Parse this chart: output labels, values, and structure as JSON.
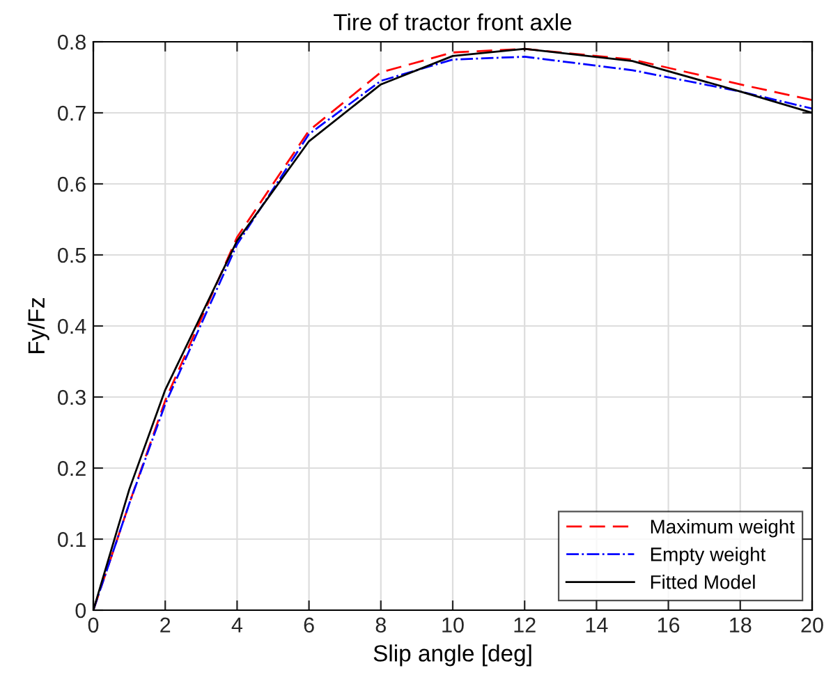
{
  "chart_data": {
    "type": "line",
    "title": "Tire of tractor front axle",
    "xlabel": "Slip angle [deg]",
    "ylabel": "Fy/Fz",
    "x": [
      0,
      1,
      2,
      4,
      6,
      8,
      10,
      12,
      15,
      18,
      20
    ],
    "series": [
      {
        "name": "Maximum weight",
        "color": "#ff0000",
        "line_style": "dashed",
        "values": [
          0,
          0.15,
          0.295,
          0.525,
          0.675,
          0.757,
          0.785,
          0.79,
          0.775,
          0.74,
          0.718
        ]
      },
      {
        "name": "Empty weight",
        "color": "#0000ff",
        "line_style": "dashdot",
        "values": [
          0,
          0.15,
          0.29,
          0.515,
          0.67,
          0.745,
          0.775,
          0.779,
          0.76,
          0.73,
          0.706
        ]
      },
      {
        "name": "Fitted Model",
        "color": "#000000",
        "line_style": "solid",
        "values": [
          0,
          0.17,
          0.31,
          0.52,
          0.66,
          0.74,
          0.78,
          0.79,
          0.773,
          0.73,
          0.7
        ]
      }
    ],
    "xlim": [
      0,
      20
    ],
    "xticks": [
      0,
      2,
      4,
      6,
      8,
      10,
      12,
      14,
      16,
      18,
      20
    ],
    "ylim": [
      0,
      0.8
    ],
    "yticks": [
      0,
      0.1,
      0.2,
      0.3,
      0.4,
      0.5,
      0.6,
      0.7,
      0.8
    ],
    "grid": true,
    "legend": "bottom right",
    "marker": "none"
  }
}
